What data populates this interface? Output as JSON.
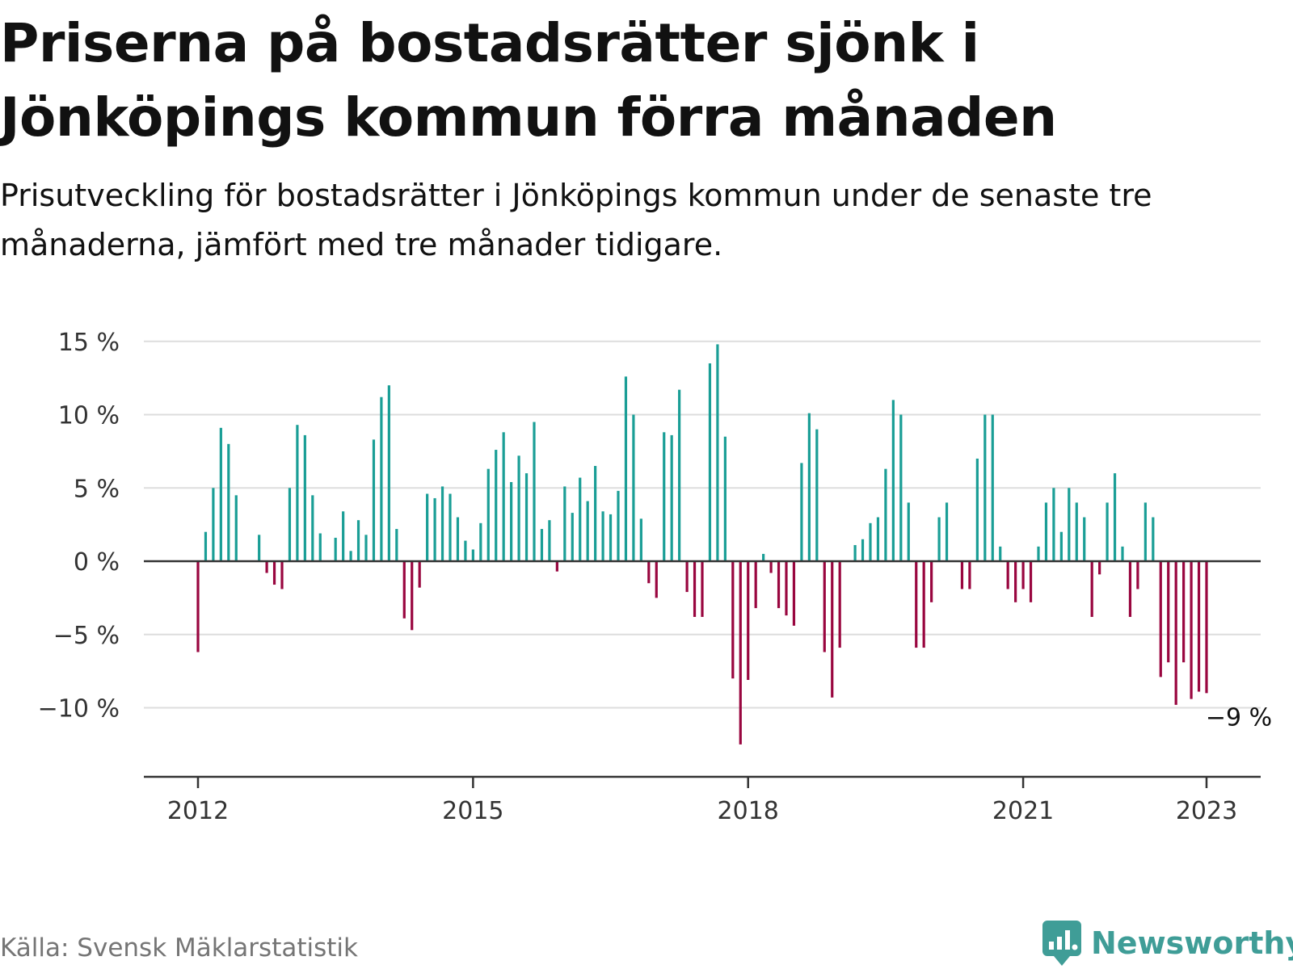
{
  "title": "Priserna på bostadsrätter sjönk i Jönköpings kommun förra månaden",
  "subtitle": "Prisutveckling för bostadsrätter i Jönköpings kommun under de senaste tre månaderna, jämfört med tre månader tidigare.",
  "source": "Källa: Svensk Mäklarstatistik",
  "brand": "Newsworthy",
  "colors": {
    "positive": "#1a9e96",
    "negative": "#99063f",
    "grid": "#dddddd",
    "axis": "#333333",
    "text": "#333333",
    "brand": "#3f9d97"
  },
  "chart_data": {
    "type": "bar",
    "x_start": "2012-01",
    "x_end": "2023-01",
    "ylim": [
      -14.5,
      15
    ],
    "yticks": [
      15,
      10,
      5,
      0,
      -5,
      -10
    ],
    "ytick_labels": [
      "15 %",
      "10 %",
      "5 %",
      "0 %",
      "−5 %",
      "−10 %"
    ],
    "xticks": [
      "2012",
      "2015",
      "2018",
      "2021",
      "2023"
    ],
    "grid": true,
    "last_label": "−9 %",
    "values": [
      -6.2,
      2.0,
      5.0,
      9.1,
      8.0,
      4.5,
      null,
      null,
      1.8,
      -0.8,
      -1.6,
      -1.9,
      5.0,
      9.3,
      8.6,
      4.5,
      1.9,
      null,
      1.6,
      3.4,
      0.7,
      2.8,
      1.8,
      8.3,
      11.2,
      12.0,
      2.2,
      -3.9,
      -4.7,
      -1.8,
      4.6,
      4.3,
      5.1,
      4.6,
      3.0,
      1.4,
      0.8,
      2.6,
      6.3,
      7.6,
      8.8,
      5.4,
      7.2,
      6.0,
      9.5,
      2.2,
      2.8,
      -0.7,
      5.1,
      3.3,
      5.7,
      4.1,
      6.5,
      3.4,
      3.2,
      4.8,
      12.6,
      10.0,
      2.9,
      -1.5,
      -2.5,
      8.8,
      8.6,
      11.7,
      -2.1,
      -3.8,
      -3.8,
      13.5,
      14.8,
      8.5,
      -8.0,
      -12.5,
      -8.1,
      -3.2,
      0.5,
      -0.8,
      -3.2,
      -3.7,
      -4.4,
      6.7,
      10.1,
      9.0,
      -6.2,
      -9.3,
      -5.9,
      null,
      1.1,
      1.5,
      2.6,
      3.0,
      6.3,
      11.0,
      10.0,
      4.0,
      -5.9,
      -5.9,
      -2.8,
      3.0,
      4.0,
      null,
      -1.9,
      -1.9,
      7.0,
      10.0,
      10.0,
      1.0,
      -1.9,
      -2.8,
      -1.9,
      -2.8,
      1.0,
      4.0,
      5.0,
      2.0,
      5.0,
      4.0,
      3.0,
      -3.8,
      -0.9,
      4.0,
      6.0,
      1.0,
      -3.8,
      -1.9,
      4.0,
      3.0,
      -7.9,
      -6.9,
      -9.8,
      -6.9,
      -9.4,
      -8.9,
      -9.0
    ]
  }
}
